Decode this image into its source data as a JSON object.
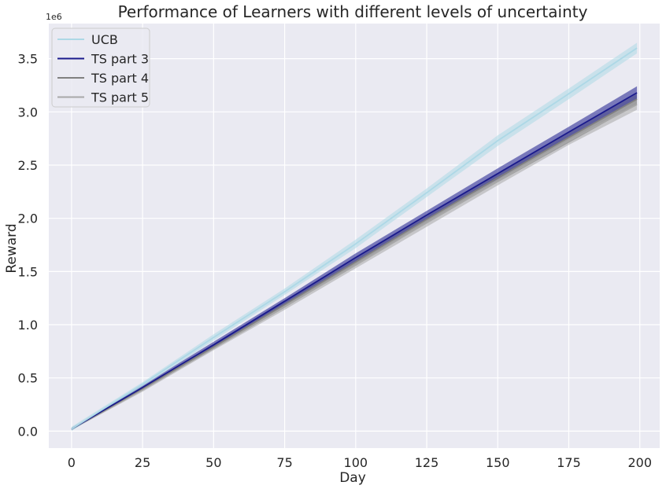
{
  "chart_data": {
    "type": "line",
    "title": "Performance of Learners with different levels of uncertainty",
    "xlabel": "Day",
    "ylabel": "Reward",
    "y_offset_label": "1e6",
    "xlim": [
      -8,
      207
    ],
    "ylim": [
      -0.16,
      3.83
    ],
    "xticks": [
      0,
      25,
      50,
      75,
      100,
      125,
      150,
      175,
      200
    ],
    "xtick_labels": [
      "0",
      "25",
      "50",
      "75",
      "100",
      "125",
      "150",
      "175",
      "200"
    ],
    "yticks": [
      0.0,
      0.5,
      1.0,
      1.5,
      2.0,
      2.5,
      3.0,
      3.5
    ],
    "ytick_labels": [
      "0.0",
      "0.5",
      "1.0",
      "1.5",
      "2.0",
      "2.5",
      "3.0",
      "3.5"
    ],
    "grid": true,
    "legend_position": "top-left",
    "series": [
      {
        "name": "UCB",
        "color": "#add8e6",
        "x": [
          0,
          25,
          50,
          75,
          100,
          125,
          150,
          175,
          199
        ],
        "y": [
          0.02,
          0.44,
          0.88,
          1.31,
          1.76,
          2.24,
          2.73,
          3.17,
          3.6
        ],
        "band": [
          0.02,
          0.02,
          0.03,
          0.03,
          0.04,
          0.04,
          0.05,
          0.05,
          0.05
        ]
      },
      {
        "name": "TS part 3",
        "color": "#1a1a8c",
        "x": [
          0,
          25,
          50,
          75,
          100,
          125,
          150,
          175,
          199
        ],
        "y": [
          0.02,
          0.41,
          0.81,
          1.22,
          1.63,
          2.03,
          2.42,
          2.81,
          3.18
        ],
        "band": [
          0.01,
          0.02,
          0.03,
          0.03,
          0.04,
          0.04,
          0.05,
          0.05,
          0.06
        ]
      },
      {
        "name": "TS part 4",
        "color": "#808080",
        "x": [
          0,
          25,
          50,
          75,
          100,
          125,
          150,
          175,
          199
        ],
        "y": [
          0.02,
          0.4,
          0.79,
          1.19,
          1.59,
          1.99,
          2.38,
          2.76,
          3.12
        ],
        "band": [
          0.01,
          0.02,
          0.02,
          0.03,
          0.03,
          0.04,
          0.04,
          0.05,
          0.05
        ]
      },
      {
        "name": "TS part 5",
        "color": "#a8a8a8",
        "x": [
          0,
          25,
          50,
          75,
          100,
          125,
          150,
          175,
          199
        ],
        "y": [
          0.02,
          0.39,
          0.78,
          1.17,
          1.56,
          1.96,
          2.35,
          2.73,
          3.07
        ],
        "band": [
          0.01,
          0.02,
          0.02,
          0.03,
          0.03,
          0.04,
          0.04,
          0.04,
          0.05
        ]
      }
    ]
  }
}
